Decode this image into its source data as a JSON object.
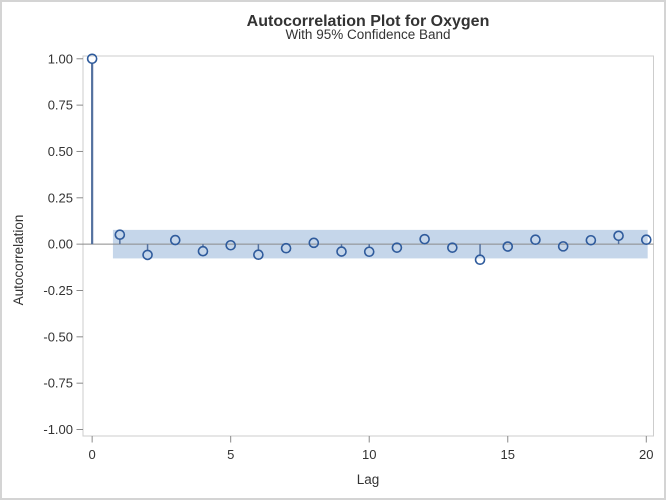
{
  "window": {
    "background_color": "#ffffff",
    "border_color": "#d4d4d4"
  },
  "chart": {
    "title": "Autocorrelation Plot for Oxygen",
    "subtitle": "With 95% Confidence Band",
    "xlabel": "Lag",
    "ylabel": "Autocorrelation"
  },
  "chart_data": {
    "type": "scatter",
    "variant": "needle-plot-with-confidence-band",
    "title": "Autocorrelation Plot for Oxygen",
    "subtitle": "With 95% Confidence Band",
    "xlabel": "Lag",
    "ylabel": "Autocorrelation",
    "x": [
      0,
      1,
      2,
      3,
      4,
      5,
      6,
      7,
      8,
      9,
      10,
      11,
      12,
      13,
      14,
      15,
      16,
      17,
      18,
      19,
      20
    ],
    "values": [
      1.0,
      0.051,
      -0.058,
      0.022,
      -0.038,
      -0.006,
      -0.057,
      -0.022,
      0.007,
      -0.04,
      -0.041,
      -0.019,
      0.027,
      -0.019,
      -0.084,
      -0.013,
      0.024,
      -0.012,
      0.021,
      0.045,
      0.024
    ],
    "confidence_band": {
      "label": "95% Confidence Band",
      "upper": 0.077,
      "lower": -0.077,
      "x_start": 0.75,
      "x_end": 20.05
    },
    "xlim": [
      -0.33,
      20.26
    ],
    "ylim": [
      -1.035,
      1.015
    ],
    "xticks": [
      0,
      5,
      10,
      15,
      20
    ],
    "xtick_labels": [
      "0",
      "5",
      "10",
      "15",
      "20"
    ],
    "yticks": [
      1.0,
      0.75,
      0.5,
      0.25,
      0.0,
      -0.25,
      -0.5,
      -0.75,
      -1.0
    ],
    "ytick_labels": [
      "1.00",
      "0.75",
      "0.50",
      "0.25",
      "0.00",
      "-0.25",
      "-0.50",
      "-0.75",
      "-1.00"
    ],
    "grid": false,
    "zero_reference_line": true,
    "legend_position": "none",
    "colors": {
      "marker": "#2f5b9c",
      "needle": "#54719f",
      "band_fill": "#c5d6ea",
      "zero_line": "#8a8a8a",
      "frame": "#cdcdcd",
      "tick": "#8a8a8a",
      "text": "#333333"
    }
  }
}
